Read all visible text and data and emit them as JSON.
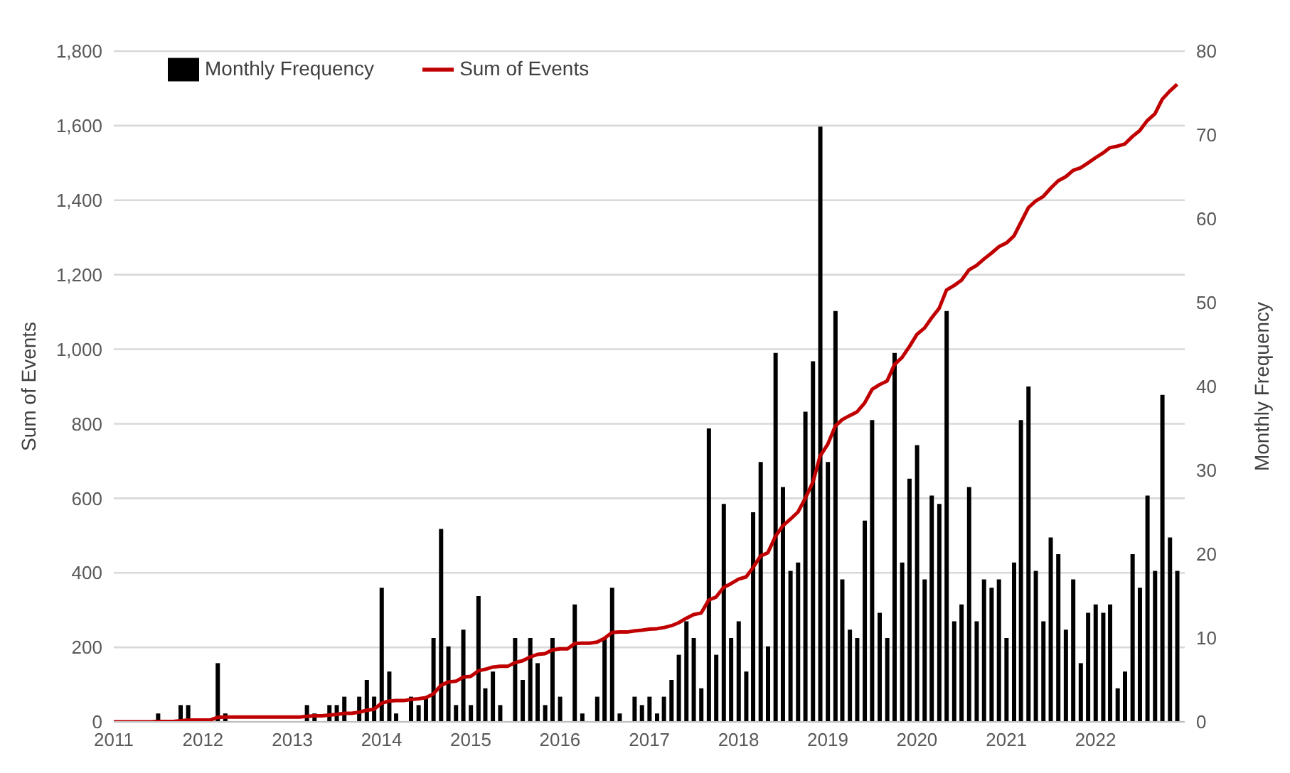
{
  "chart_data": {
    "type": "bar",
    "ylabel": "Sum of Events",
    "y2label": "Monthly Frequency",
    "x": [
      "2011-01",
      "2011-02",
      "2011-03",
      "2011-04",
      "2011-05",
      "2011-06",
      "2011-07",
      "2011-08",
      "2011-09",
      "2011-10",
      "2011-11",
      "2011-12",
      "2012-01",
      "2012-02",
      "2012-03",
      "2012-04",
      "2012-05",
      "2012-06",
      "2012-07",
      "2012-08",
      "2012-09",
      "2012-10",
      "2012-11",
      "2012-12",
      "2013-01",
      "2013-02",
      "2013-03",
      "2013-04",
      "2013-05",
      "2013-06",
      "2013-07",
      "2013-08",
      "2013-09",
      "2013-10",
      "2013-11",
      "2013-12",
      "2014-01",
      "2014-02",
      "2014-03",
      "2014-04",
      "2014-05",
      "2014-06",
      "2014-07",
      "2014-08",
      "2014-09",
      "2014-10",
      "2014-11",
      "2014-12",
      "2015-01",
      "2015-02",
      "2015-03",
      "2015-04",
      "2015-05",
      "2015-06",
      "2015-07",
      "2015-08",
      "2015-09",
      "2015-10",
      "2015-11",
      "2015-12",
      "2016-01",
      "2016-02",
      "2016-03",
      "2016-04",
      "2016-05",
      "2016-06",
      "2016-07",
      "2016-08",
      "2016-09",
      "2016-10",
      "2016-11",
      "2016-12",
      "2017-01",
      "2017-02",
      "2017-03",
      "2017-04",
      "2017-05",
      "2017-06",
      "2017-07",
      "2017-08",
      "2017-09",
      "2017-10",
      "2017-11",
      "2017-12",
      "2018-01",
      "2018-02",
      "2018-03",
      "2018-04",
      "2018-05",
      "2018-06",
      "2018-07",
      "2018-08",
      "2018-09",
      "2018-10",
      "2018-11",
      "2018-12",
      "2019-01",
      "2019-02",
      "2019-03",
      "2019-04",
      "2019-05",
      "2019-06",
      "2019-07",
      "2019-08",
      "2019-09",
      "2019-10",
      "2019-11",
      "2019-12",
      "2020-01",
      "2020-02",
      "2020-03",
      "2020-04",
      "2020-05",
      "2020-06",
      "2020-07",
      "2020-08",
      "2020-09",
      "2020-10",
      "2020-11",
      "2020-12",
      "2021-01",
      "2021-02",
      "2021-03",
      "2021-04",
      "2021-05",
      "2021-06",
      "2021-07",
      "2021-08",
      "2021-09",
      "2021-10",
      "2021-11",
      "2021-12",
      "2022-01",
      "2022-02",
      "2022-03",
      "2022-04",
      "2022-05",
      "2022-06",
      "2022-07",
      "2022-08",
      "2022-09",
      "2022-10",
      "2022-11",
      "2022-12"
    ],
    "series": [
      {
        "name": "Monthly Frequency",
        "axis": "y2",
        "color": "#000000",
        "values": [
          0,
          0,
          0,
          0,
          0,
          0,
          1,
          0,
          0,
          2,
          2,
          0,
          0,
          0,
          7,
          1,
          0,
          0,
          0,
          0,
          0,
          0,
          0,
          0,
          0,
          0,
          2,
          1,
          0,
          2,
          2,
          3,
          0,
          3,
          5,
          3,
          16,
          6,
          1,
          0,
          3,
          2,
          3,
          10,
          23,
          9,
          2,
          11,
          2,
          15,
          4,
          6,
          2,
          0,
          10,
          5,
          10,
          7,
          2,
          10,
          3,
          0,
          14,
          1,
          0,
          3,
          10,
          16,
          1,
          0,
          3,
          2,
          3,
          1,
          3,
          5,
          8,
          12,
          10,
          4,
          35,
          8,
          26,
          10,
          12,
          6,
          25,
          31,
          9,
          44,
          28,
          18,
          19,
          37,
          43,
          71,
          31,
          49,
          17,
          11,
          10,
          24,
          36,
          13,
          10,
          44,
          19,
          29,
          33,
          17,
          27,
          26,
          49,
          12,
          14,
          28,
          12,
          17,
          16,
          17,
          10,
          19,
          36,
          40,
          18,
          12,
          22,
          20,
          11,
          17,
          7,
          13,
          14,
          13,
          14,
          4,
          6,
          20,
          16,
          27,
          18,
          39,
          22,
          18
        ]
      },
      {
        "name": "Sum of Events",
        "type": "line",
        "axis": "y",
        "color": "#c00000",
        "values": [
          0,
          0,
          0,
          0,
          0,
          0,
          1,
          1,
          1,
          3,
          5,
          5,
          5,
          5,
          12,
          13,
          13,
          13,
          13,
          13,
          13,
          13,
          13,
          13,
          13,
          13,
          15,
          16,
          16,
          18,
          20,
          23,
          23,
          26,
          31,
          34,
          50,
          56,
          57,
          57,
          60,
          62,
          65,
          75,
          98,
          107,
          109,
          120,
          122,
          137,
          141,
          147,
          149,
          149,
          159,
          164,
          174,
          181,
          183,
          193,
          196,
          196,
          210,
          211,
          211,
          214,
          224,
          240,
          241,
          241,
          244,
          246,
          249,
          250,
          253,
          258,
          266,
          278,
          288,
          292,
          327,
          335,
          361,
          371,
          383,
          389,
          414,
          445,
          454,
          498,
          526,
          544,
          563,
          600,
          643,
          714,
          745,
          794,
          811,
          822,
          832,
          856,
          892,
          905,
          915,
          959,
          978,
          1007,
          1040,
          1057,
          1084,
          1110,
          1159,
          1171,
          1185,
          1213,
          1225,
          1242,
          1258,
          1275,
          1285,
          1304,
          1340,
          1380,
          1398,
          1410,
          1432,
          1452,
          1463,
          1480,
          1487,
          1500,
          1514,
          1527,
          1541,
          1545,
          1551,
          1571,
          1587,
          1614,
          1632,
          1671,
          1693,
          1711
        ]
      }
    ],
    "xlim": [
      "2011-01",
      "2023-01"
    ],
    "xticks": [
      "2011",
      "2012",
      "2013",
      "2014",
      "2015",
      "2016",
      "2017",
      "2018",
      "2019",
      "2020",
      "2021",
      "2022"
    ],
    "ylim": [
      0,
      1800
    ],
    "yticks": [
      0,
      200,
      400,
      600,
      800,
      {
        "value": 1000,
        "label": "1,000"
      },
      {
        "value": 1200,
        "label": "1,200"
      },
      {
        "value": 1400,
        "label": "1,400"
      },
      {
        "value": 1600,
        "label": "1,600"
      },
      {
        "value": 1800,
        "label": "1,800"
      }
    ],
    "y2lim": [
      0,
      80
    ],
    "y2ticks": [
      0,
      10,
      20,
      30,
      40,
      50,
      60,
      70,
      80
    ],
    "grid": "y",
    "legend": "top left",
    "marker": "none",
    "line_style": "solid"
  }
}
